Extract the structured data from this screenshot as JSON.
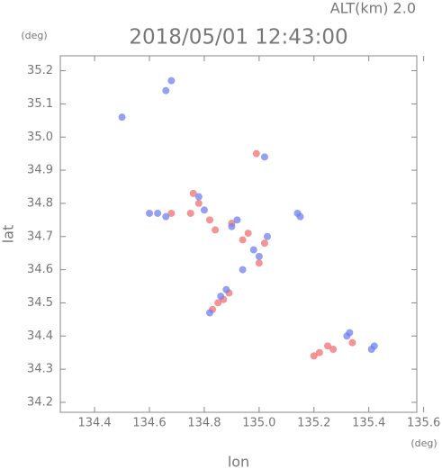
{
  "chart_data": {
    "type": "scatter",
    "subtitle": "ALT(km) 2.0",
    "title": "2018/05/01 12:43:00",
    "y_unit": "(deg)",
    "x_unit": "(deg)",
    "xlabel": "lon",
    "ylabel": "lat",
    "xlim": [
      134.275,
      135.575
    ],
    "ylim": [
      34.17,
      35.245
    ],
    "xticks": [
      134.4,
      134.6,
      134.8,
      {
        "value": 135,
        "label": "135.0"
      },
      135.2,
      135.4,
      135.6
    ],
    "yticks": [
      34.2,
      34.3,
      34.4,
      34.5,
      34.6,
      34.7,
      34.8,
      34.9,
      {
        "value": 35,
        "label": "35.0"
      },
      35.1,
      35.2
    ],
    "series": [
      {
        "color": "#f07070",
        "x": [
          134.76,
          134.78,
          134.75,
          134.82,
          134.84,
          134.99,
          134.94,
          134.96,
          135.02,
          134.89,
          134.87,
          134.83,
          134.85,
          135.2,
          135.22,
          135.25,
          135.27,
          135.34,
          134.68,
          134.9,
          135.0
        ],
        "values": [
          34.83,
          34.8,
          34.77,
          34.75,
          34.72,
          34.95,
          34.69,
          34.71,
          34.68,
          34.53,
          34.51,
          34.48,
          34.5,
          34.34,
          34.35,
          34.37,
          34.36,
          34.38,
          34.77,
          34.74,
          34.62
        ]
      },
      {
        "color": "#7080f0",
        "x": [
          134.66,
          134.68,
          134.5,
          135.02,
          134.6,
          134.63,
          134.66,
          134.8,
          134.92,
          134.9,
          135.0,
          134.98,
          135.03,
          134.86,
          134.88,
          134.82,
          135.14,
          135.15,
          135.32,
          135.33,
          135.41,
          135.42,
          134.78,
          134.94
        ],
        "values": [
          35.14,
          35.17,
          35.06,
          34.94,
          34.77,
          34.77,
          34.76,
          34.78,
          34.75,
          34.73,
          34.64,
          34.66,
          34.7,
          34.52,
          34.54,
          34.47,
          34.77,
          34.76,
          34.4,
          34.41,
          34.36,
          34.37,
          34.82,
          34.6
        ]
      }
    ]
  }
}
